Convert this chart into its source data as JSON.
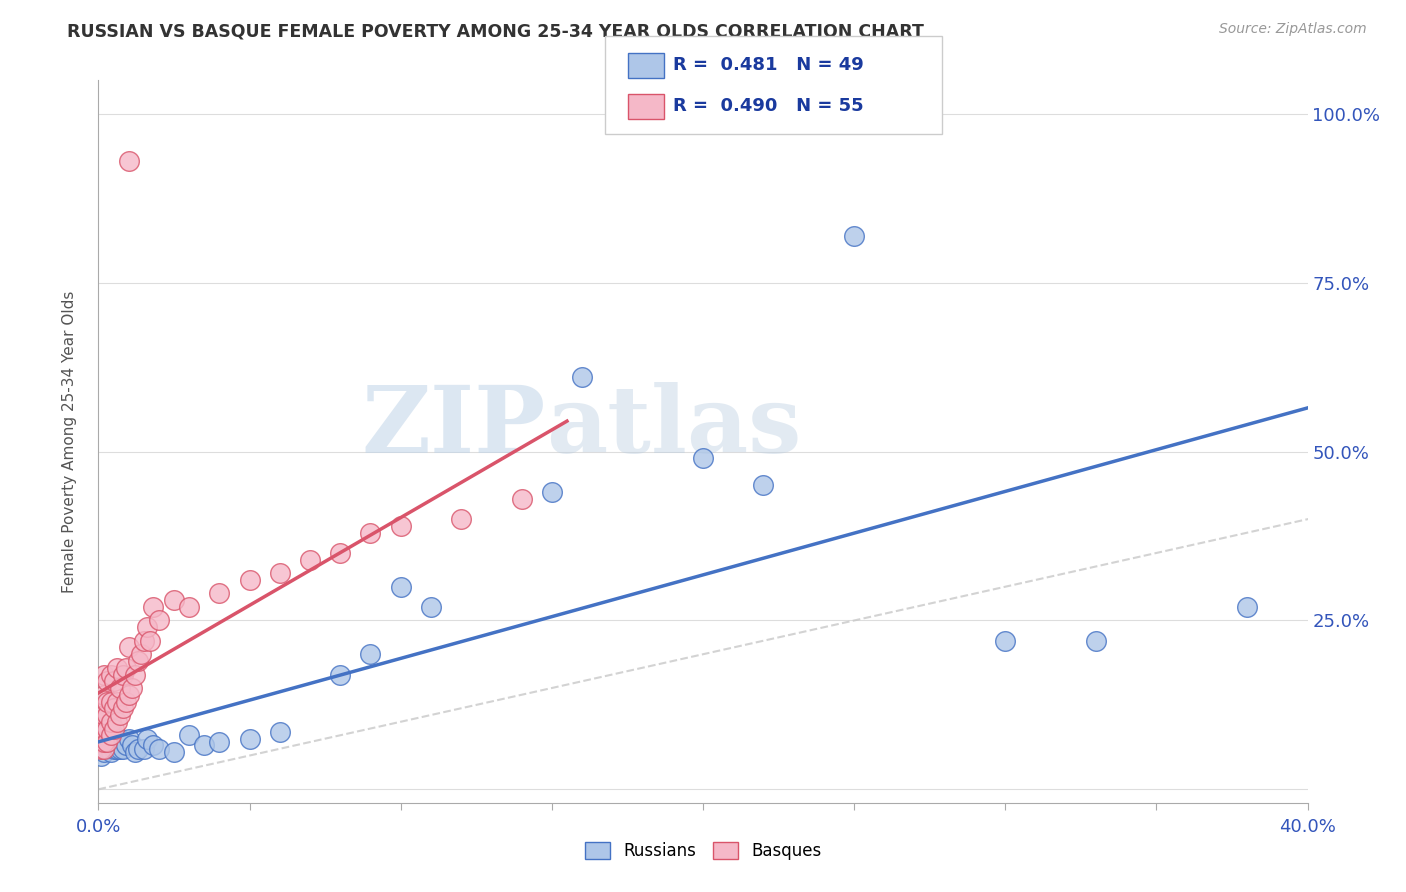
{
  "title": "RUSSIAN VS BASQUE FEMALE POVERTY AMONG 25-34 YEAR OLDS CORRELATION CHART",
  "source": "Source: ZipAtlas.com",
  "ylabel": "Female Poverty Among 25-34 Year Olds",
  "xlim": [
    0.0,
    0.4
  ],
  "ylim": [
    -0.02,
    1.05
  ],
  "xticks": [
    0.0,
    0.05,
    0.1,
    0.15,
    0.2,
    0.25,
    0.3,
    0.35,
    0.4
  ],
  "xticklabels": [
    "0.0%",
    "",
    "",
    "",
    "",
    "",
    "",
    "",
    "40.0%"
  ],
  "yticks": [
    0.0,
    0.25,
    0.5,
    0.75,
    1.0
  ],
  "yticklabels": [
    "",
    "25.0%",
    "50.0%",
    "75.0%",
    "100.0%"
  ],
  "russian_R": 0.481,
  "russian_N": 49,
  "basque_R": 0.49,
  "basque_N": 55,
  "russian_color": "#aec6e8",
  "basque_color": "#f5b8c8",
  "russian_line_color": "#4472c4",
  "basque_line_color": "#d9546a",
  "diagonal_color": "#c8c8c8",
  "watermark_zip": "ZIP",
  "watermark_atlas": "atlas",
  "russian_x": [
    0.001,
    0.001,
    0.001,
    0.002,
    0.002,
    0.002,
    0.002,
    0.003,
    0.003,
    0.003,
    0.003,
    0.004,
    0.004,
    0.004,
    0.005,
    0.005,
    0.005,
    0.006,
    0.006,
    0.007,
    0.007,
    0.008,
    0.009,
    0.01,
    0.011,
    0.012,
    0.013,
    0.015,
    0.016,
    0.018,
    0.02,
    0.025,
    0.03,
    0.035,
    0.04,
    0.05,
    0.06,
    0.08,
    0.09,
    0.1,
    0.11,
    0.15,
    0.16,
    0.2,
    0.22,
    0.25,
    0.3,
    0.33,
    0.38
  ],
  "russian_y": [
    0.05,
    0.06,
    0.07,
    0.055,
    0.065,
    0.07,
    0.08,
    0.06,
    0.065,
    0.07,
    0.075,
    0.055,
    0.065,
    0.075,
    0.06,
    0.07,
    0.08,
    0.06,
    0.075,
    0.06,
    0.075,
    0.06,
    0.065,
    0.075,
    0.065,
    0.055,
    0.06,
    0.06,
    0.075,
    0.065,
    0.06,
    0.055,
    0.08,
    0.065,
    0.07,
    0.075,
    0.085,
    0.17,
    0.2,
    0.3,
    0.27,
    0.44,
    0.61,
    0.49,
    0.45,
    0.82,
    0.22,
    0.22,
    0.27
  ],
  "basque_x": [
    0.001,
    0.001,
    0.001,
    0.001,
    0.001,
    0.002,
    0.002,
    0.002,
    0.002,
    0.002,
    0.002,
    0.003,
    0.003,
    0.003,
    0.003,
    0.003,
    0.004,
    0.004,
    0.004,
    0.004,
    0.005,
    0.005,
    0.005,
    0.006,
    0.006,
    0.006,
    0.007,
    0.007,
    0.008,
    0.008,
    0.009,
    0.009,
    0.01,
    0.01,
    0.011,
    0.012,
    0.013,
    0.014,
    0.015,
    0.016,
    0.017,
    0.018,
    0.02,
    0.025,
    0.03,
    0.04,
    0.05,
    0.06,
    0.07,
    0.08,
    0.09,
    0.1,
    0.12,
    0.14,
    0.01
  ],
  "basque_y": [
    0.06,
    0.07,
    0.08,
    0.1,
    0.12,
    0.06,
    0.07,
    0.09,
    0.11,
    0.14,
    0.17,
    0.07,
    0.09,
    0.11,
    0.13,
    0.16,
    0.08,
    0.1,
    0.13,
    0.17,
    0.09,
    0.12,
    0.16,
    0.1,
    0.13,
    0.18,
    0.11,
    0.15,
    0.12,
    0.17,
    0.13,
    0.18,
    0.14,
    0.21,
    0.15,
    0.17,
    0.19,
    0.2,
    0.22,
    0.24,
    0.22,
    0.27,
    0.25,
    0.28,
    0.27,
    0.29,
    0.31,
    0.32,
    0.34,
    0.35,
    0.38,
    0.39,
    0.4,
    0.43,
    0.93
  ],
  "basque_line_x_end": 0.155,
  "russian_line_x_start": 0.0,
  "russian_line_x_end": 0.4
}
